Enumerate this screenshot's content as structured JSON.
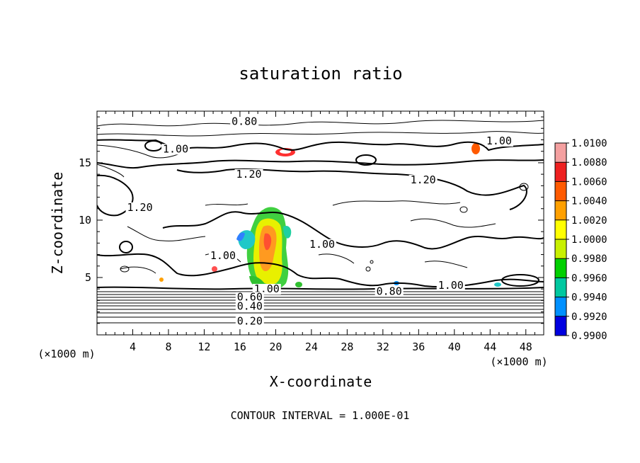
{
  "chart_data": {
    "type": "contour",
    "title": "saturation ratio",
    "xlabel": "X-coordinate",
    "ylabel": "Z-coordinate",
    "x_unit_left": "(×1000 m)",
    "x_unit_right": "(×1000 m)",
    "footer": "CONTOUR INTERVAL = 1.000E-01",
    "xlim": [
      0,
      50
    ],
    "ylim": [
      0,
      19.5
    ],
    "x_ticks": [
      4,
      8,
      12,
      16,
      20,
      24,
      28,
      32,
      36,
      40,
      44,
      48
    ],
    "y_ticks": [
      5,
      10,
      15
    ],
    "contour_labels": [
      {
        "text": "0.80",
        "x": 16.5,
        "y": 18.3
      },
      {
        "text": "1.00",
        "x": 8.8,
        "y": 15.9
      },
      {
        "text": "1.00",
        "x": 45.0,
        "y": 16.6
      },
      {
        "text": "1.20",
        "x": 17.0,
        "y": 13.7
      },
      {
        "text": "1.20",
        "x": 36.5,
        "y": 13.2
      },
      {
        "text": "1.20",
        "x": 4.8,
        "y": 10.8
      },
      {
        "text": "1.00",
        "x": 25.2,
        "y": 7.6
      },
      {
        "text": "1.00",
        "x": 14.1,
        "y": 6.6
      },
      {
        "text": "1.00",
        "x": 19.0,
        "y": 3.7
      },
      {
        "text": "0.80",
        "x": 32.7,
        "y": 3.5
      },
      {
        "text": "1.00",
        "x": 39.6,
        "y": 4.0
      },
      {
        "text": "0.60",
        "x": 17.1,
        "y": 3.0
      },
      {
        "text": "0.40",
        "x": 17.1,
        "y": 2.2
      },
      {
        "text": "0.20",
        "x": 17.1,
        "y": 0.9
      }
    ],
    "colorbar": {
      "levels": [
        "1.0100",
        "1.0080",
        "1.0060",
        "1.0040",
        "1.0020",
        "1.0000",
        "0.9980",
        "0.9960",
        "0.9940",
        "0.9920",
        "0.9900"
      ],
      "colors": [
        "#f4a0a0",
        "#ee2020",
        "#ff5a00",
        "#ffa000",
        "#ffff00",
        "#c8f000",
        "#00d000",
        "#00c8a0",
        "#0090ff",
        "#0000e0",
        "#2000a0"
      ]
    }
  }
}
